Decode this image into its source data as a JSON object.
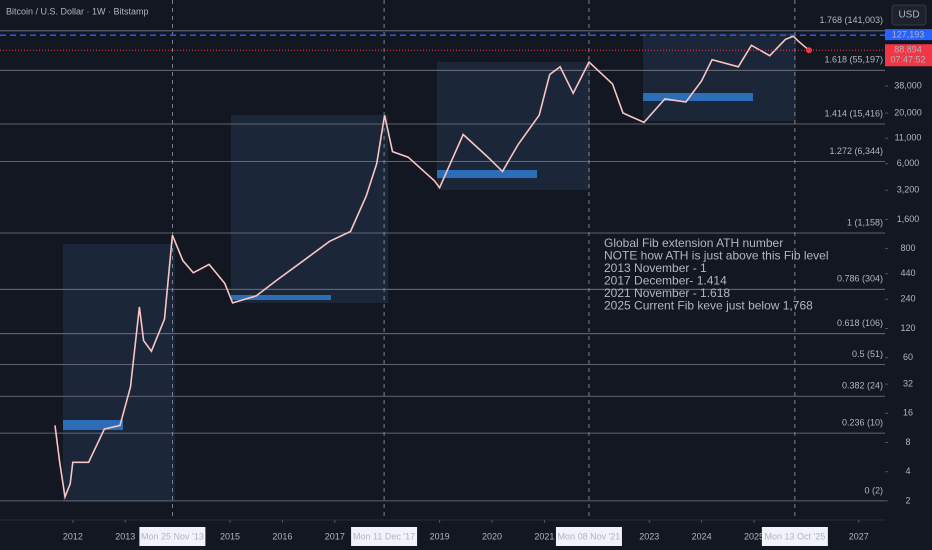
{
  "chart_data": {
    "type": "line",
    "title": "Bitcoin / U.S. Dollar · 1W · Bitstamp",
    "currency": "USD",
    "log_scale": true,
    "x": [
      2011.66,
      2011.75,
      2011.85,
      2011.95,
      2012.0,
      2012.3,
      2012.6,
      2012.9,
      2013.1,
      2013.27,
      2013.35,
      2013.5,
      2013.75,
      2013.9,
      2014.1,
      2014.3,
      2014.6,
      2014.9,
      2015.05,
      2015.5,
      2015.9,
      2016.4,
      2016.9,
      2017.3,
      2017.6,
      2017.8,
      2017.95,
      2018.1,
      2018.4,
      2018.9,
      2019.0,
      2019.45,
      2019.9,
      2020.2,
      2020.5,
      2020.9,
      2021.1,
      2021.3,
      2021.55,
      2021.85,
      2022.3,
      2022.5,
      2022.9,
      2023.3,
      2023.7,
      2024.0,
      2024.2,
      2024.7,
      2024.95,
      2025.3,
      2025.6,
      2025.75,
      2025.85,
      2026.05
    ],
    "series": [
      {
        "color": "#f7c5c3",
        "values": [
          12,
          5,
          2.2,
          3,
          5,
          5,
          11,
          12,
          30,
          200,
          90,
          70,
          150,
          1100,
          600,
          450,
          550,
          350,
          220,
          260,
          380,
          600,
          950,
          1200,
          2800,
          6000,
          19000,
          8000,
          7000,
          4000,
          3400,
          12000,
          7200,
          5000,
          9500,
          19000,
          50000,
          60000,
          32000,
          67000,
          40000,
          20000,
          16000,
          28000,
          26000,
          43000,
          71000,
          60000,
          100000,
          78000,
          115000,
          124000,
          110000,
          88894
        ]
      }
    ],
    "xlim": [
      2010.61,
      2027.5
    ],
    "xticks": [
      2012,
      2013,
      2015,
      2016,
      2017,
      2019,
      2020,
      2021,
      2023,
      2024,
      2025,
      2027
    ],
    "ylim": [
      1.27,
      293000
    ],
    "yticks": [
      2,
      4,
      8,
      16,
      32,
      60,
      120,
      240,
      440,
      800,
      {
        "value": 1600,
        "label": "1,600"
      },
      {
        "value": 3200,
        "label": "3,200"
      },
      {
        "value": 6000,
        "label": "6,000"
      },
      {
        "value": 11000,
        "label": "11,000"
      },
      {
        "value": 20000,
        "label": "20,000"
      },
      {
        "value": 38000,
        "label": "38,000"
      }
    ],
    "fib_levels": [
      {
        "value": 141003,
        "label": "1.768 (141,003)"
      },
      {
        "value": 55197,
        "label": "1.618 (55,197)"
      },
      {
        "value": 15416,
        "label": "1.414 (15,416)"
      },
      {
        "value": 6344,
        "label": "1.272 (6,344)"
      },
      {
        "value": 1158,
        "label": "1 (1,158)"
      },
      {
        "value": 304,
        "label": "0.786 (304)"
      },
      {
        "value": 106,
        "label": "0.618 (106)"
      },
      {
        "value": 51,
        "label": "0.5 (51)"
      },
      {
        "value": 24,
        "label": "0.382 (24)"
      },
      {
        "value": 10,
        "label": "0.236 (10)"
      },
      {
        "value": 2,
        "label": "0 (2)"
      }
    ],
    "price_lines": [
      {
        "value": 127193,
        "label": "127,193",
        "color": "#2962ff"
      },
      {
        "value": 88894,
        "label": "88,894",
        "countdown": "07:47:52",
        "color": "#f23645"
      }
    ],
    "date_markers": [
      {
        "x": 2013.9,
        "label": "Mon 25 Nov '13"
      },
      {
        "x": 2017.94,
        "label": "Mon 11 Dec '17"
      },
      {
        "x": 2021.85,
        "label": "Mon 08 Nov '21"
      },
      {
        "x": 2025.78,
        "label": "Mon 13 Oct '25"
      }
    ],
    "annotation": [
      "Global Fib extension ATH number",
      "NOTE how ATH is just above this Fib level",
      "2013 November - 1",
      "2017 December- 1.414",
      "2021 November - 1.618",
      "2025 Current Fib keve just below 1,768"
    ]
  }
}
